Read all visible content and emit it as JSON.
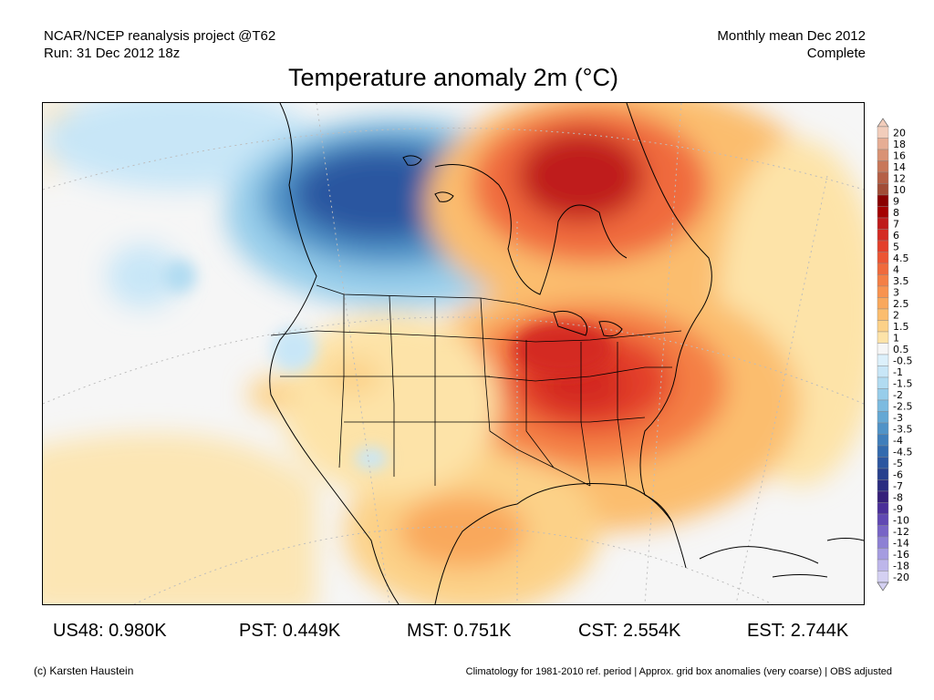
{
  "header": {
    "left_line1": "NCAR/NCEP reanalysis project @T62",
    "left_line2": "Run: 31 Dec 2012 18z",
    "right_line1": "Monthly mean Dec 2012",
    "right_line2": "Complete"
  },
  "title": "Temperature anomaly 2m (°C)",
  "colorbar": {
    "labels": [
      "20",
      "18",
      "16",
      "14",
      "12",
      "10",
      "9",
      "8",
      "7",
      "6",
      "5",
      "4.5",
      "4",
      "3.5",
      "3",
      "2.5",
      "2",
      "1.5",
      "1",
      "0.5",
      "-0.5",
      "-1",
      "-1.5",
      "-2",
      "-2.5",
      "-3",
      "-3.5",
      "-4",
      "-4.5",
      "-5",
      "-6",
      "-7",
      "-8",
      "-9",
      "-10",
      "-12",
      "-14",
      "-16",
      "-18",
      "-20"
    ],
    "colors": [
      "#f2cdbb",
      "#e6ad94",
      "#d99274",
      "#c87759",
      "#b55f45",
      "#a14c36",
      "#8a0000",
      "#a40000",
      "#bf1a1a",
      "#d42a22",
      "#e33f2b",
      "#ec5534",
      "#f06a3c",
      "#f47f45",
      "#f8934f",
      "#f9a85c",
      "#fbbd6e",
      "#fcd188",
      "#fde3a8",
      "#f6f6f6",
      "#dcf0fb",
      "#c8e6f7",
      "#b1dbf1",
      "#97cdea",
      "#7cbbe0",
      "#64a8d4",
      "#5093c7",
      "#3f7ebb",
      "#326aae",
      "#2c56a0",
      "#27408e",
      "#2a2c80",
      "#35207a",
      "#4a2f99",
      "#6048b3",
      "#7764c6",
      "#8d80d4",
      "#a59ce0",
      "#bdb6ea",
      "#d4d0f2"
    ]
  },
  "stats": {
    "us48": "US48: 0.980K",
    "pst": "PST: 0.449K",
    "mst": "MST: 0.751K",
    "cst": "CST: 2.554K",
    "est": "EST: 2.744K"
  },
  "footer": {
    "credit": "(c) Karsten Haustein",
    "note": "Climatology for 1981-2010 ref. period | Approx. grid box anomalies (very coarse) | OBS adjusted"
  }
}
